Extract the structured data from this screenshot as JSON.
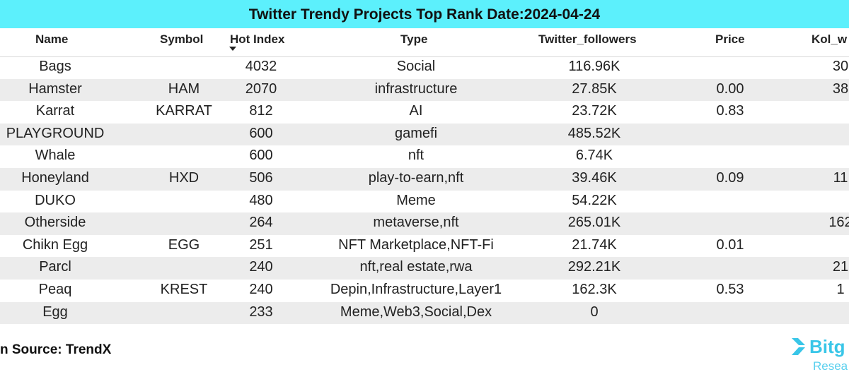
{
  "title": "Twitter Trendy Projects Top Rank Date:2024-04-24",
  "columns": [
    "Name",
    "Symbol",
    "Hot Index",
    "Type",
    "Twitter_followers",
    "Price",
    "Kol_w"
  ],
  "rows": [
    {
      "name": "Bags",
      "symbol": "",
      "hot": "4032",
      "type": "Social",
      "followers": "116.96K",
      "price": "",
      "kol": "30"
    },
    {
      "name": "Hamster",
      "symbol": "HAM",
      "hot": "2070",
      "type": "infrastructure",
      "followers": "27.85K",
      "price": "0.00",
      "kol": "38"
    },
    {
      "name": "Karrat",
      "symbol": "KARRAT",
      "hot": "812",
      "type": "AI",
      "followers": "23.72K",
      "price": "0.83",
      "kol": ""
    },
    {
      "name": "PLAYGROUND",
      "symbol": "",
      "hot": "600",
      "type": "gamefi",
      "followers": "485.52K",
      "price": "",
      "kol": ""
    },
    {
      "name": "Whale",
      "symbol": "",
      "hot": "600",
      "type": "nft",
      "followers": "6.74K",
      "price": "",
      "kol": ""
    },
    {
      "name": "Honeyland",
      "symbol": "HXD",
      "hot": "506",
      "type": "play-to-earn,nft",
      "followers": "39.46K",
      "price": "0.09",
      "kol": "11"
    },
    {
      "name": "DUKO",
      "symbol": "",
      "hot": "480",
      "type": "Meme",
      "followers": "54.22K",
      "price": "",
      "kol": ""
    },
    {
      "name": "Otherside",
      "symbol": "",
      "hot": "264",
      "type": "metaverse,nft",
      "followers": "265.01K",
      "price": "",
      "kol": "162"
    },
    {
      "name": "Chikn Egg",
      "symbol": "EGG",
      "hot": "251",
      "type": "NFT Marketplace,NFT-Fi",
      "followers": "21.74K",
      "price": "0.01",
      "kol": ""
    },
    {
      "name": "Parcl",
      "symbol": "",
      "hot": "240",
      "type": "nft,real estate,rwa",
      "followers": "292.21K",
      "price": "",
      "kol": "21"
    },
    {
      "name": "Peaq",
      "symbol": "KREST",
      "hot": "240",
      "type": "Depin,Infrastructure,Layer1",
      "followers": "162.3K",
      "price": "0.53",
      "kol": "1"
    },
    {
      "name": "Egg",
      "symbol": "",
      "hot": "233",
      "type": "Meme,Web3,Social,Dex",
      "followers": "0",
      "price": "",
      "kol": ""
    }
  ],
  "source": "n Source: TrendX",
  "logo": {
    "brand": "Bitg",
    "sub": "Resea"
  },
  "colors": {
    "title_bg": "#5cf0fc",
    "row_alt": "#ececec",
    "logo": "#39c6e8"
  }
}
